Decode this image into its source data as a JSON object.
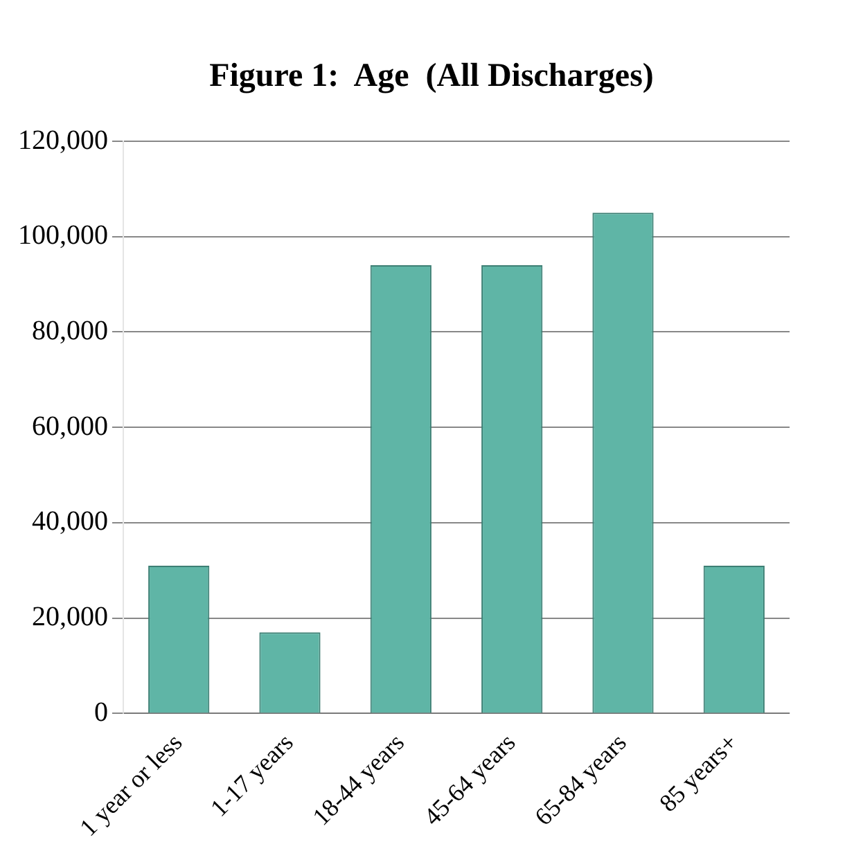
{
  "chart_data": {
    "type": "bar",
    "title": "Figure 1:  Age  (All Discharges)",
    "categories": [
      "1 year or less",
      "1-17 years",
      "18-44 years",
      "45-64 years",
      "65-84 years",
      "85 years+"
    ],
    "values": [
      31000,
      17000,
      94000,
      94000,
      105000,
      31000
    ],
    "color": "#5fb5a6",
    "ylim": [
      0,
      120000
    ],
    "yticks": [
      0,
      {
        "value": 20000,
        "label": "20,000"
      },
      {
        "value": 40000,
        "label": "40,000"
      },
      {
        "value": 60000,
        "label": "60,000"
      },
      {
        "value": 80000,
        "label": "80,000"
      },
      {
        "value": 100000,
        "label": "100,000"
      },
      {
        "value": 120000,
        "label": "120,000"
      }
    ],
    "grid": "y"
  }
}
